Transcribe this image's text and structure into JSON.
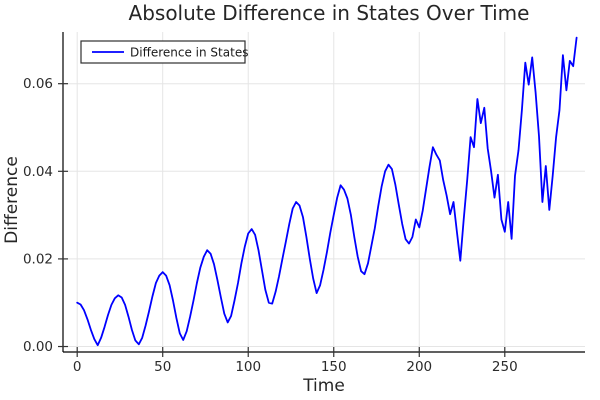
{
  "title": "Absolute Difference in States Over Time",
  "colors": {
    "line": "#0000ff",
    "grid": "#e5e5e5",
    "spine": "#000000",
    "tick": "#333333",
    "text": "#262626",
    "legend_border": "#2f2f2f",
    "background": "#ffffff"
  },
  "legend": {
    "entries": [
      {
        "label": "Difference in States",
        "color": "#0000ff"
      }
    ]
  },
  "chart_data": {
    "type": "line",
    "title": "Absolute Difference in States Over Time",
    "xlabel": "Time",
    "ylabel": "Difference",
    "xlim": [
      -8.3,
      296.9
    ],
    "ylim": [
      -0.00125,
      0.0718
    ],
    "grid": true,
    "legend_position": "top-left",
    "x_ticks": {
      "values": [
        0,
        50,
        100,
        150,
        200,
        250
      ],
      "labels": [
        "0",
        "50",
        "100",
        "150",
        "200",
        "250"
      ]
    },
    "y_ticks": {
      "values": [
        0.0,
        0.02,
        0.04,
        0.06
      ],
      "labels": [
        "0.00",
        "0.02",
        "0.04",
        "0.06"
      ]
    },
    "series": [
      {
        "name": "Difference in States",
        "color": "#0000ff",
        "points": [
          [
            0,
            0.01
          ],
          [
            2,
            0.0096
          ],
          [
            4,
            0.0083
          ],
          [
            6,
            0.0062
          ],
          [
            8,
            0.0038
          ],
          [
            10,
            0.0017
          ],
          [
            12,
            0.0003
          ],
          [
            14,
            0.002
          ],
          [
            16,
            0.0045
          ],
          [
            18,
            0.0072
          ],
          [
            20,
            0.0095
          ],
          [
            22,
            0.011
          ],
          [
            24,
            0.0117
          ],
          [
            26,
            0.0112
          ],
          [
            28,
            0.0095
          ],
          [
            30,
            0.0068
          ],
          [
            32,
            0.0038
          ],
          [
            34,
            0.0014
          ],
          [
            36,
            0.0005
          ],
          [
            38,
            0.002
          ],
          [
            40,
            0.0048
          ],
          [
            42,
            0.008
          ],
          [
            44,
            0.0115
          ],
          [
            46,
            0.0145
          ],
          [
            48,
            0.0162
          ],
          [
            50,
            0.017
          ],
          [
            52,
            0.0162
          ],
          [
            54,
            0.014
          ],
          [
            56,
            0.0105
          ],
          [
            58,
            0.0065
          ],
          [
            60,
            0.003
          ],
          [
            62,
            0.0015
          ],
          [
            64,
            0.0035
          ],
          [
            66,
            0.0068
          ],
          [
            68,
            0.0105
          ],
          [
            70,
            0.0145
          ],
          [
            72,
            0.018
          ],
          [
            74,
            0.0205
          ],
          [
            76,
            0.022
          ],
          [
            78,
            0.0212
          ],
          [
            80,
            0.0188
          ],
          [
            82,
            0.0152
          ],
          [
            84,
            0.0112
          ],
          [
            86,
            0.0075
          ],
          [
            88,
            0.0055
          ],
          [
            90,
            0.007
          ],
          [
            92,
            0.0105
          ],
          [
            94,
            0.0145
          ],
          [
            96,
            0.019
          ],
          [
            98,
            0.0228
          ],
          [
            100,
            0.0258
          ],
          [
            102,
            0.0268
          ],
          [
            104,
            0.0255
          ],
          [
            106,
            0.022
          ],
          [
            108,
            0.0175
          ],
          [
            110,
            0.013
          ],
          [
            112,
            0.01
          ],
          [
            114,
            0.0098
          ],
          [
            116,
            0.0125
          ],
          [
            118,
            0.016
          ],
          [
            120,
            0.02
          ],
          [
            122,
            0.024
          ],
          [
            124,
            0.028
          ],
          [
            126,
            0.0315
          ],
          [
            128,
            0.033
          ],
          [
            130,
            0.0322
          ],
          [
            132,
            0.0295
          ],
          [
            134,
            0.025
          ],
          [
            136,
            0.02
          ],
          [
            138,
            0.0155
          ],
          [
            140,
            0.0122
          ],
          [
            142,
            0.014
          ],
          [
            144,
            0.0175
          ],
          [
            146,
            0.0215
          ],
          [
            148,
            0.026
          ],
          [
            150,
            0.03
          ],
          [
            152,
            0.034
          ],
          [
            154,
            0.0368
          ],
          [
            156,
            0.0358
          ],
          [
            158,
            0.0338
          ],
          [
            160,
            0.03
          ],
          [
            162,
            0.025
          ],
          [
            164,
            0.0205
          ],
          [
            166,
            0.0172
          ],
          [
            168,
            0.0165
          ],
          [
            170,
            0.019
          ],
          [
            172,
            0.023
          ],
          [
            174,
            0.027
          ],
          [
            176,
            0.032
          ],
          [
            178,
            0.0365
          ],
          [
            180,
            0.04
          ],
          [
            182,
            0.0415
          ],
          [
            184,
            0.0405
          ],
          [
            186,
            0.037
          ],
          [
            188,
            0.0325
          ],
          [
            190,
            0.028
          ],
          [
            192,
            0.0245
          ],
          [
            194,
            0.0235
          ],
          [
            196,
            0.025
          ],
          [
            198,
            0.029
          ],
          [
            200,
            0.0272
          ],
          [
            202,
            0.031
          ],
          [
            204,
            0.036
          ],
          [
            206,
            0.041
          ],
          [
            208,
            0.0455
          ],
          [
            210,
            0.0438
          ],
          [
            212,
            0.0425
          ],
          [
            214,
            0.038
          ],
          [
            216,
            0.0345
          ],
          [
            218,
            0.0302
          ],
          [
            220,
            0.033
          ],
          [
            222,
            0.0262
          ],
          [
            224,
            0.0196
          ],
          [
            226,
            0.029
          ],
          [
            228,
            0.038
          ],
          [
            230,
            0.0478
          ],
          [
            232,
            0.0455
          ],
          [
            234,
            0.0565
          ],
          [
            236,
            0.051
          ],
          [
            238,
            0.0545
          ],
          [
            240,
            0.0452
          ],
          [
            242,
            0.04
          ],
          [
            244,
            0.034
          ],
          [
            246,
            0.0392
          ],
          [
            248,
            0.029
          ],
          [
            250,
            0.0262
          ],
          [
            252,
            0.033
          ],
          [
            254,
            0.0246
          ],
          [
            256,
            0.039
          ],
          [
            258,
            0.0448
          ],
          [
            260,
            0.054
          ],
          [
            262,
            0.0648
          ],
          [
            264,
            0.0598
          ],
          [
            266,
            0.066
          ],
          [
            268,
            0.058
          ],
          [
            270,
            0.048
          ],
          [
            272,
            0.033
          ],
          [
            274,
            0.0412
          ],
          [
            276,
            0.0312
          ],
          [
            278,
            0.039
          ],
          [
            280,
            0.0478
          ],
          [
            282,
            0.054
          ],
          [
            284,
            0.0665
          ],
          [
            286,
            0.0585
          ],
          [
            288,
            0.0652
          ],
          [
            290,
            0.064
          ],
          [
            292,
            0.0705
          ]
        ]
      }
    ]
  }
}
